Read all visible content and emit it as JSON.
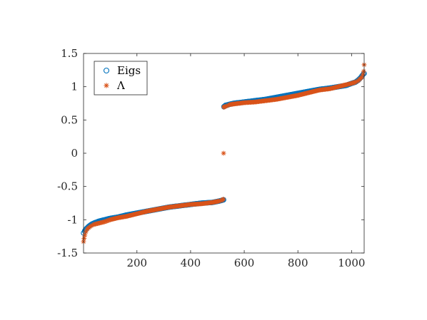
{
  "chart_data": {
    "type": "scatter",
    "title": "",
    "xlabel": "",
    "ylabel": "",
    "xlim": [
      1,
      1047
    ],
    "ylim": [
      -1.5,
      1.5
    ],
    "x_ticks": [
      200,
      400,
      600,
      800,
      1000
    ],
    "x_tick_labels": [
      "200",
      "400",
      "600",
      "800",
      "1000"
    ],
    "y_ticks": [
      -1.5,
      -1,
      -0.5,
      0,
      0.5,
      1,
      1.5
    ],
    "y_tick_labels": [
      "-1.5",
      "-1",
      "-0.5",
      "0",
      "0.5",
      "1",
      "1.5"
    ],
    "grid": false,
    "legend_position": "top-left",
    "series": [
      {
        "name": "Eigs",
        "marker": "circle",
        "color": "#0072BD",
        "x": [
          1,
          5,
          10,
          20,
          30,
          40,
          60,
          80,
          100,
          130,
          160,
          200,
          240,
          280,
          320,
          360,
          400,
          440,
          480,
          505,
          515,
          523,
          524,
          530,
          540,
          560,
          600,
          640,
          680,
          720,
          760,
          800,
          840,
          880,
          920,
          950,
          980,
          1000,
          1015,
          1025,
          1035,
          1040,
          1044,
          1047
        ],
        "y": [
          -1.2,
          -1.17,
          -1.14,
          -1.1,
          -1.07,
          -1.05,
          -1.02,
          -1.0,
          -0.98,
          -0.96,
          -0.93,
          -0.9,
          -0.87,
          -0.84,
          -0.81,
          -0.79,
          -0.77,
          -0.75,
          -0.74,
          -0.72,
          -0.71,
          -0.7,
          0.7,
          0.72,
          0.73,
          0.75,
          0.77,
          0.79,
          0.81,
          0.84,
          0.87,
          0.9,
          0.93,
          0.96,
          0.98,
          1.0,
          1.02,
          1.05,
          1.07,
          1.1,
          1.14,
          1.17,
          1.19,
          1.2
        ]
      },
      {
        "name": "Λ",
        "marker": "asterisk",
        "color": "#D95319",
        "x": [
          1,
          3,
          6,
          10,
          15,
          20,
          30,
          40,
          60,
          80,
          100,
          130,
          160,
          200,
          240,
          280,
          320,
          360,
          400,
          440,
          480,
          505,
          515,
          522,
          523,
          524,
          526,
          535,
          545,
          560,
          600,
          640,
          680,
          720,
          760,
          800,
          840,
          880,
          920,
          950,
          980,
          1000,
          1015,
          1025,
          1032,
          1038,
          1042,
          1045,
          1047
        ],
        "y": [
          -1.33,
          -1.28,
          -1.23,
          -1.18,
          -1.14,
          -1.12,
          -1.09,
          -1.07,
          -1.05,
          -1.03,
          -1.0,
          -0.97,
          -0.95,
          -0.91,
          -0.87,
          -0.84,
          -0.81,
          -0.79,
          -0.77,
          -0.76,
          -0.74,
          -0.72,
          -0.71,
          -0.69,
          0.0,
          0.69,
          0.7,
          0.71,
          0.73,
          0.74,
          0.76,
          0.77,
          0.79,
          0.81,
          0.84,
          0.87,
          0.91,
          0.95,
          0.97,
          1.0,
          1.03,
          1.05,
          1.07,
          1.09,
          1.12,
          1.14,
          1.18,
          1.23,
          1.33
        ]
      }
    ]
  }
}
